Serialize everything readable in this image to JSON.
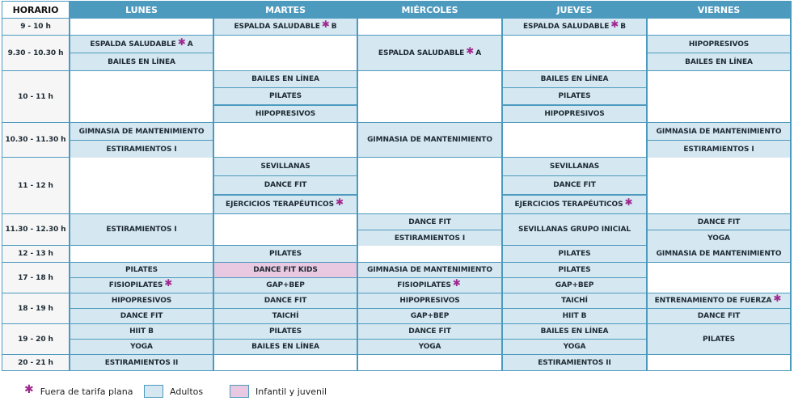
{
  "headers": [
    "HORARIO",
    "LUNES",
    "MARTES",
    "MIÉRCOLES",
    "JUEVES",
    "VIERNES"
  ],
  "time_slots": [
    "9 - 10 h",
    "9.30 - 10.30 h",
    "10 - 11 h",
    "10.30 - 11.30 h",
    "11 - 12 h",
    "11.30 - 12.30 h",
    "12 - 13 h",
    "17 - 18 h",
    "18 - 19 h",
    "19 - 20 h",
    "20 - 21 h"
  ],
  "schedule": [
    [
      [],
      [
        {
          "t": "ESPALDA SALUDABLE",
          "star": true,
          "post": "B",
          "k": "adult"
        }
      ],
      [],
      [
        {
          "t": "ESPALDA SALUDABLE",
          "star": true,
          "post": "B",
          "k": "adult"
        }
      ],
      []
    ],
    [
      [
        {
          "t": "ESPALDA SALUDABLE",
          "star": true,
          "post": "A",
          "k": "adult"
        },
        {
          "t": "BAILES EN LÍNEA",
          "k": "adult"
        }
      ],
      [],
      [
        {
          "t": "ESPALDA SALUDABLE",
          "star": true,
          "post": "A",
          "k": "adult"
        }
      ],
      [],
      [
        {
          "t": "HIPOPRESIVOS",
          "k": "adult"
        },
        {
          "t": "BAILES EN LÍNEA",
          "k": "adult"
        }
      ]
    ],
    [
      [],
      [
        {
          "t": "BAILES EN LÍNEA",
          "k": "adult"
        },
        {
          "t": "PILATES",
          "k": "adult"
        },
        {
          "t": "HIPOPRESIVOS",
          "k": "adult"
        }
      ],
      [],
      [
        {
          "t": "BAILES EN LÍNEA",
          "k": "adult"
        },
        {
          "t": "PILATES",
          "k": "adult"
        },
        {
          "t": "HIPOPRESIVOS",
          "k": "adult"
        }
      ],
      []
    ],
    [
      [
        {
          "t": "GIMNASIA DE MANTENIMIENTO",
          "k": "adult"
        },
        {
          "t": "ESTIRAMIENTOS I",
          "k": "adult"
        }
      ],
      [],
      [
        {
          "t": "GIMNASIA DE MANTENIMIENTO",
          "k": "adult"
        }
      ],
      [],
      [
        {
          "t": "GIMNASIA DE MANTENIMIENTO",
          "k": "adult"
        },
        {
          "t": "ESTIRAMIENTOS I",
          "k": "adult"
        }
      ]
    ],
    [
      [],
      [
        {
          "t": "SEVILLANAS",
          "k": "adult"
        },
        {
          "t": "DANCE FIT",
          "k": "adult"
        },
        {
          "t": "EJERCICIOS TERAPÉUTICOS",
          "star": true,
          "k": "adult"
        }
      ],
      [],
      [
        {
          "t": "SEVILLANAS",
          "k": "adult"
        },
        {
          "t": "DANCE FIT",
          "k": "adult"
        },
        {
          "t": "EJERCICIOS TERAPÉUTICOS",
          "star": true,
          "k": "adult"
        }
      ],
      []
    ],
    [
      [
        {
          "t": "ESTIRAMIENTOS I",
          "k": "adult"
        }
      ],
      [],
      [
        {
          "t": "DANCE FIT",
          "k": "adult"
        },
        {
          "t": "ESTIRAMIENTOS I",
          "k": "adult"
        }
      ],
      [
        {
          "t": "SEVILLANAS GRUPO INICIAL",
          "k": "adult"
        }
      ],
      [
        {
          "t": "DANCE FIT",
          "k": "adult"
        },
        {
          "t": "YOGA",
          "k": "adult"
        }
      ]
    ],
    [
      [],
      [
        {
          "t": "PILATES",
          "k": "adult"
        }
      ],
      [],
      [
        {
          "t": "PILATES",
          "k": "adult"
        }
      ],
      [
        {
          "t": "GIMNASIA DE MANTENIMIENTO",
          "k": "adult"
        }
      ]
    ],
    [
      [
        {
          "t": "PILATES",
          "k": "adult"
        },
        {
          "t": "FISIOPILATES",
          "star": true,
          "k": "adult"
        }
      ],
      [
        {
          "t": "DANCE FIT KIDS",
          "k": "kids"
        },
        {
          "t": "GAP+BEP",
          "k": "adult"
        }
      ],
      [
        {
          "t": "GIMNASIA DE MANTENIMIENTO",
          "k": "adult"
        },
        {
          "t": "FISIOPILATES",
          "star": true,
          "k": "adult"
        }
      ],
      [
        {
          "t": "PILATES",
          "k": "adult"
        },
        {
          "t": "GAP+BEP",
          "k": "adult"
        }
      ],
      []
    ],
    [
      [
        {
          "t": "HIPOPRESIVOS",
          "k": "adult"
        },
        {
          "t": "DANCE FIT",
          "k": "adult"
        }
      ],
      [
        {
          "t": "DANCE FIT",
          "k": "adult"
        },
        {
          "t": "TAICHÍ",
          "k": "adult"
        }
      ],
      [
        {
          "t": "HIPOPRESIVOS",
          "k": "adult"
        },
        {
          "t": "GAP+BEP",
          "k": "adult"
        }
      ],
      [
        {
          "t": "TAICHÍ",
          "k": "adult"
        },
        {
          "t": "HIIT B",
          "k": "adult"
        }
      ],
      [
        {
          "t": "ENTRENAMIENTO DE FUERZA",
          "star": true,
          "k": "adult"
        },
        {
          "t": "DANCE FIT",
          "k": "adult"
        }
      ]
    ],
    [
      [
        {
          "t": "HIIT B",
          "k": "adult"
        },
        {
          "t": "YOGA",
          "k": "adult"
        }
      ],
      [
        {
          "t": "PILATES",
          "k": "adult"
        },
        {
          "t": "BAILES EN LÍNEA",
          "k": "adult"
        }
      ],
      [
        {
          "t": "DANCE FIT",
          "k": "adult"
        },
        {
          "t": "YOGA",
          "k": "adult"
        }
      ],
      [
        {
          "t": "BAILES EN LÍNEA",
          "k": "adult"
        },
        {
          "t": "YOGA",
          "k": "adult"
        }
      ],
      [
        {
          "t": "PILATES",
          "k": "adult"
        }
      ]
    ],
    [
      [
        {
          "t": "ESTIRAMIENTOS II",
          "k": "adult"
        }
      ],
      [],
      [],
      [
        {
          "t": "ESTIRAMIENTOS II",
          "k": "adult"
        }
      ],
      []
    ]
  ],
  "legend": {
    "star_label": "Fuera de tarifa plana",
    "adult_label": "Adultos",
    "kids_label": "Infantil y juvenil"
  },
  "colors": {
    "header": "#4d9abf",
    "adult": "#d5e7f0",
    "kids": "#e9c9e1",
    "star": "#a0278f"
  },
  "icons": {
    "star": "asterisk-icon"
  }
}
